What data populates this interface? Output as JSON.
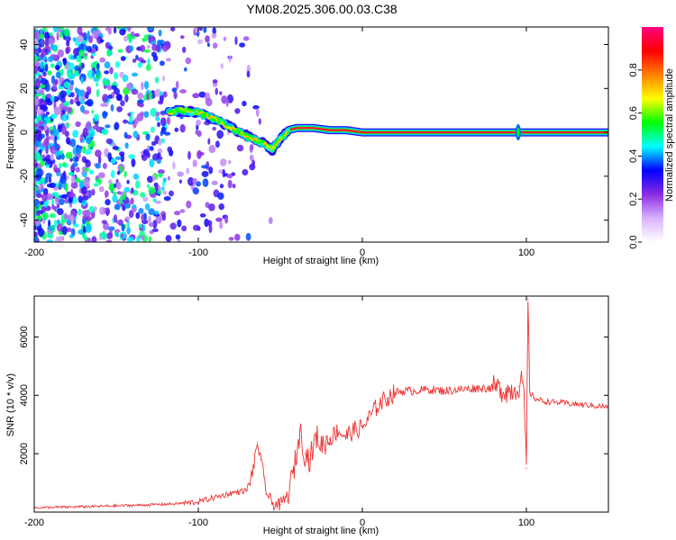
{
  "title": "YM08.2025.306.00.03.C38",
  "colorbar": {
    "label": "Normalized spectral amplitude",
    "ticks": [
      "0.0",
      "0.2",
      "0.4",
      "0.6",
      "0.8"
    ],
    "tick_values": [
      0.0,
      0.2,
      0.4,
      0.6,
      0.8
    ],
    "range": [
      0,
      1
    ],
    "colors": [
      "#ffffff",
      "#d9b3ff",
      "#8a2be2",
      "#0000ff",
      "#00ffff",
      "#00ff00",
      "#ffff00",
      "#ff8000",
      "#ff0000",
      "#ff0080"
    ]
  },
  "chart_data": [
    {
      "type": "heatmap",
      "xlabel": "Height of straight line (km)",
      "ylabel": "Frequency (Hz)",
      "xlim": [
        -200,
        150
      ],
      "ylim": [
        -50,
        48
      ],
      "xticks": [
        -200,
        -100,
        0,
        100
      ],
      "xtick_labels": [
        "-200",
        "-100",
        "0",
        "100"
      ],
      "yticks": [
        -40,
        -20,
        0,
        20,
        40
      ],
      "ytick_labels": [
        "-40",
        "-20",
        "0",
        "20",
        "40"
      ],
      "noise_region_x": [
        -200,
        -55
      ],
      "ridge": {
        "x": [
          -118,
          -110,
          -100,
          -90,
          -80,
          -70,
          -60,
          -55,
          -50,
          -45,
          -40,
          -30,
          -20,
          -10,
          0,
          50,
          90,
          95,
          100,
          150
        ],
        "y": [
          9,
          10,
          9,
          6,
          2,
          -2,
          -5,
          -8,
          -3,
          1,
          2,
          2,
          1,
          1,
          0,
          0,
          0,
          0,
          0,
          0
        ]
      }
    },
    {
      "type": "line",
      "xlabel": "Height of straight line (km)",
      "ylabel": "SNR (10 * v/v)",
      "xlim": [
        -200,
        150
      ],
      "ylim": [
        0,
        7400
      ],
      "xticks": [
        -200,
        -100,
        0,
        100
      ],
      "xtick_labels": [
        "-200",
        "-100",
        "0",
        "100"
      ],
      "yticks": [
        2000,
        4000,
        6000
      ],
      "ytick_labels": [
        "2000",
        "4000",
        "6000"
      ],
      "color": "#ee3333",
      "series": [
        {
          "name": "SNR",
          "x": [
            -200,
            -180,
            -160,
            -140,
            -120,
            -110,
            -100,
            -90,
            -80,
            -75,
            -70,
            -66,
            -64,
            -62,
            -60,
            -58,
            -55,
            -50,
            -45,
            -42,
            -40,
            -38,
            -35,
            -32,
            -30,
            -28,
            -25,
            -20,
            -15,
            -10,
            -5,
            0,
            5,
            10,
            15,
            20,
            25,
            30,
            40,
            50,
            60,
            70,
            80,
            85,
            90,
            95,
            98,
            100,
            101,
            102,
            105,
            110,
            120,
            130,
            140,
            150
          ],
          "y": [
            150,
            170,
            200,
            230,
            270,
            300,
            350,
            500,
            650,
            700,
            750,
            1600,
            2400,
            1800,
            1200,
            600,
            300,
            250,
            600,
            1400,
            2000,
            2800,
            2000,
            1800,
            2200,
            2600,
            2300,
            2500,
            2800,
            2600,
            2800,
            2900,
            3300,
            3700,
            3900,
            4100,
            4150,
            4150,
            4200,
            4150,
            4200,
            4250,
            4250,
            4200,
            4150,
            4300,
            4500,
            1500,
            7300,
            4100,
            3900,
            3800,
            3750,
            3700,
            3650,
            3600
          ]
        }
      ]
    }
  ]
}
